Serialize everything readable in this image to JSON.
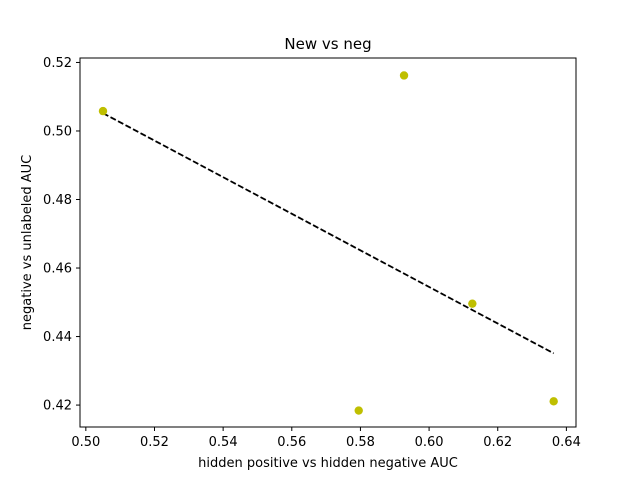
{
  "chart_data": {
    "type": "scatter",
    "title": "New vs neg",
    "xlabel": "hidden positive vs hidden negative  AUC",
    "ylabel": "negative vs unlabeled AUC",
    "xlim": [
      0.4983,
      0.6428
    ],
    "ylim": [
      0.4136,
      0.5213
    ],
    "grid": false,
    "x_ticks": [
      0.5,
      0.52,
      0.54,
      0.56,
      0.58,
      0.6,
      0.62,
      0.64
    ],
    "x_tick_labels": [
      "0.50",
      "0.52",
      "0.54",
      "0.56",
      "0.58",
      "0.60",
      "0.62",
      "0.64"
    ],
    "y_ticks": [
      0.42,
      0.44,
      0.46,
      0.48,
      0.5,
      0.52
    ],
    "y_tick_labels": [
      "0.42",
      "0.44",
      "0.46",
      "0.48",
      "0.50",
      "0.52"
    ],
    "series": [
      {
        "kind": "points",
        "color": "#bfbf00",
        "x": [
          0.505,
          0.5927,
          0.6126,
          0.5795,
          0.6363
        ],
        "y": [
          0.5058,
          0.5162,
          0.4496,
          0.4184,
          0.4211
        ]
      },
      {
        "kind": "fit-line",
        "color": "#000000",
        "linestyle": "dashed",
        "x": [
          0.505,
          0.6363
        ],
        "y": [
          0.5052,
          0.4351
        ]
      }
    ]
  }
}
